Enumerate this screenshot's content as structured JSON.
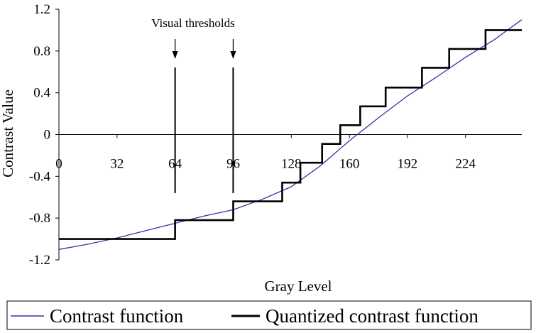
{
  "chart_data": {
    "type": "line",
    "title": "",
    "xlabel": "Gray Level",
    "ylabel": "Contrast Value",
    "xlim": [
      0,
      255
    ],
    "ylim": [
      -1.2,
      1.2
    ],
    "x_ticks": [
      0,
      32,
      64,
      96,
      128,
      160,
      192,
      224
    ],
    "y_ticks": [
      1.2,
      0.8,
      0.4,
      0,
      -0.4,
      -0.8,
      -1.2
    ],
    "x_tick_labels": [
      "0",
      "32",
      "64",
      "96",
      "128",
      "160",
      "192",
      "224"
    ],
    "y_tick_labels": [
      "1.2",
      "0.8",
      "0.4",
      "0",
      "-0.4",
      "-0.8",
      "-1.2"
    ],
    "grid": false,
    "legend_position": "bottom",
    "annotation": {
      "text": "Visual thresholds",
      "threshold_x": [
        64,
        96
      ]
    },
    "series": [
      {
        "name": "Contrast function",
        "color": "#3333aa",
        "style": "smooth",
        "x": [
          0,
          16,
          32,
          48,
          64,
          80,
          96,
          112,
          128,
          144,
          160,
          176,
          192,
          208,
          224,
          240,
          255
        ],
        "y": [
          -1.1,
          -1.05,
          -0.99,
          -0.92,
          -0.85,
          -0.78,
          -0.72,
          -0.62,
          -0.5,
          -0.3,
          -0.06,
          0.16,
          0.37,
          0.55,
          0.74,
          0.91,
          1.1
        ]
      },
      {
        "name": "Quantized contrast function",
        "color": "#000000",
        "style": "step",
        "x": [
          0,
          64,
          64,
          96,
          96,
          123,
          123,
          133,
          133,
          145,
          145,
          155,
          155,
          166,
          166,
          180,
          180,
          200,
          200,
          215,
          215,
          235,
          235,
          255
        ],
        "y": [
          -1.0,
          -1.0,
          -0.82,
          -0.82,
          -0.64,
          -0.64,
          -0.46,
          -0.46,
          -0.27,
          -0.27,
          -0.09,
          -0.09,
          0.09,
          0.09,
          0.27,
          0.27,
          0.45,
          0.45,
          0.64,
          0.64,
          0.82,
          0.82,
          1.0,
          1.0
        ]
      }
    ]
  }
}
